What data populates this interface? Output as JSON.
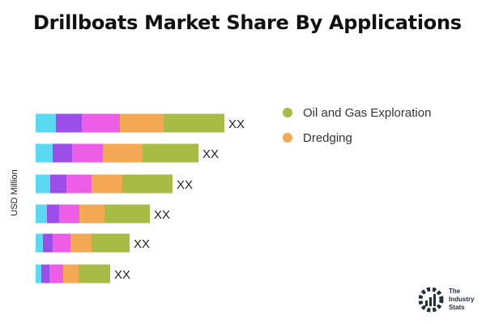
{
  "title": "Drillboats Market Share By Applications",
  "chart_data": {
    "type": "bar",
    "orientation": "horizontal",
    "stacked": true,
    "ylabel": "USD Million",
    "bar_labels": [
      "XX",
      "XX",
      "XX",
      "XX",
      "XX",
      "XX"
    ],
    "series": [
      {
        "color": "#5bd8f2",
        "values": [
          25,
          21,
          18,
          14,
          9,
          7
        ]
      },
      {
        "color": "#9b4ee8",
        "values": [
          32,
          24,
          20,
          15,
          12,
          10
        ]
      },
      {
        "color": "#ec5ee6",
        "values": [
          47,
          38,
          31,
          25,
          22,
          17
        ]
      },
      {
        "color": "#f5a853",
        "values": [
          54,
          49,
          38,
          31,
          26,
          19
        ]
      },
      {
        "color": "#a8bb45",
        "values": [
          75,
          69,
          62,
          56,
          47,
          39
        ]
      }
    ],
    "legend": {
      "position": "right",
      "items": [
        {
          "label": "Oil and Gas Exploration",
          "color": "#a8bb45"
        },
        {
          "label": "Dredging",
          "color": "#f5a853"
        }
      ]
    },
    "grid": false
  },
  "logo": {
    "line1": "The",
    "line2": "Industry",
    "line3": "Stats"
  }
}
